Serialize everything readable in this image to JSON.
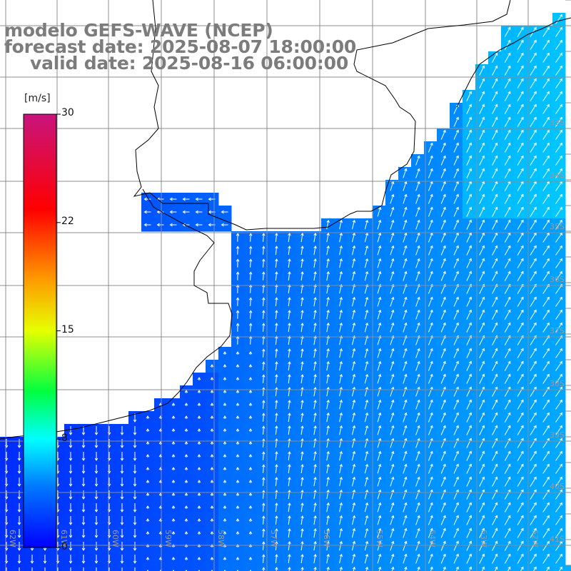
{
  "title_lines": [
    "modelo GEFS-WAVE (NCEP)",
    "forecast date: 2025-08-07 18:00:00",
    "valid date: 2025-08-16 06:00:00"
  ],
  "colorbar": {
    "unit": "[m/s]",
    "min": 0,
    "max": 30,
    "ticks": [
      "30",
      "22",
      "15",
      "8",
      "0"
    ],
    "tick_values": [
      30,
      22.5,
      15,
      7.5,
      0
    ],
    "colors": [
      "#0000ff",
      "#00bfff",
      "#00ffff",
      "#00ff00",
      "#ffff00",
      "#ff8000",
      "#ff0000",
      "#c71585"
    ]
  },
  "latitude_labels": [
    "33S",
    "34S",
    "35S",
    "36S",
    "37S",
    "38S",
    "39S",
    "40S",
    "41S"
  ],
  "longitude_labels": [
    "62W",
    "61W",
    "60W",
    "59W",
    "58W",
    "57W",
    "56W",
    "55W",
    "54W",
    "53W",
    "52W"
  ],
  "colors": {
    "land": "#ffffff",
    "coast": "#000000",
    "grid": "#8c8c8c",
    "title": "#7c7c7c"
  }
}
